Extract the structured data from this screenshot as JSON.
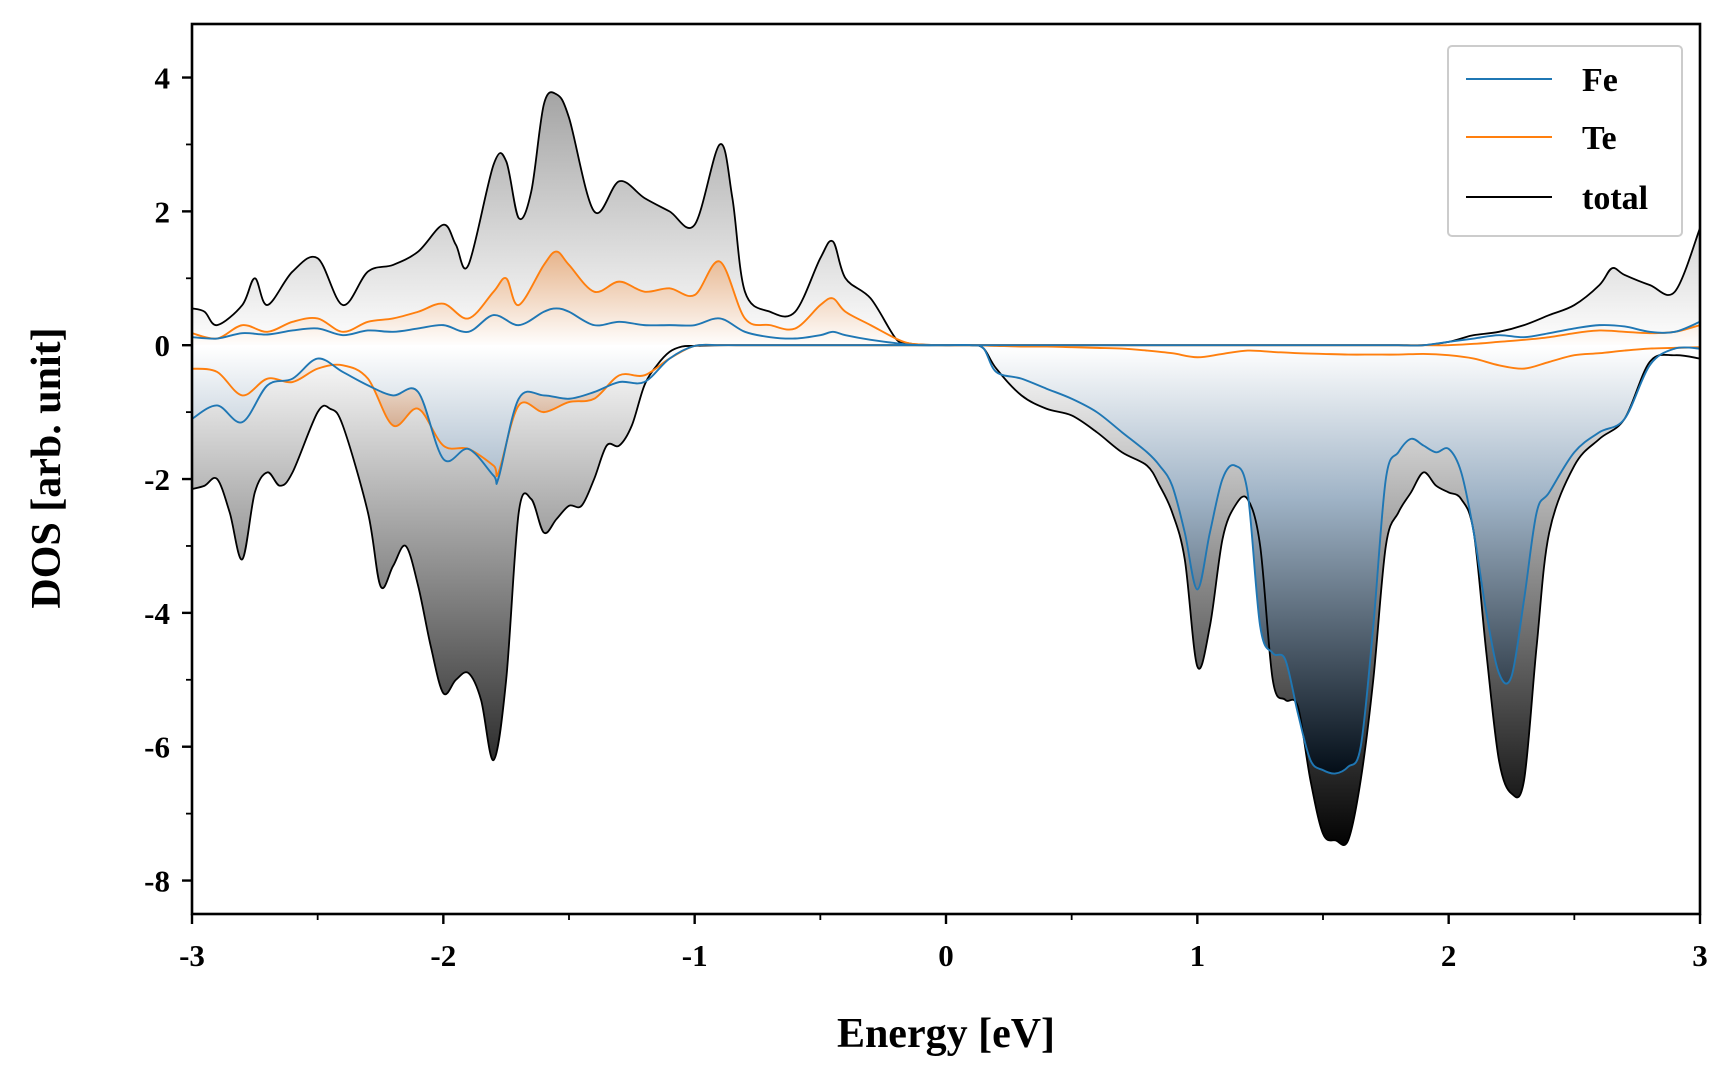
{
  "chart_data": {
    "type": "area",
    "title": "",
    "xlabel": "Energy [eV]",
    "ylabel": "DOS [arb. unit]",
    "xlim": [
      -3,
      3
    ],
    "ylim": [
      -8.5,
      4.8
    ],
    "xticks": [
      -3,
      -2,
      -1,
      0,
      1,
      2,
      3
    ],
    "xtick_labels": [
      "-3",
      "-2",
      "-1",
      "0",
      "1",
      "2",
      "3"
    ],
    "yticks": [
      -8,
      -6,
      -4,
      -2,
      0,
      2,
      4
    ],
    "ytick_labels": [
      "-8",
      "-6",
      "-4",
      "-2",
      "0",
      "2",
      "4"
    ],
    "grid": false,
    "legend_position": "top-right",
    "legend": [
      "Fe",
      "Te",
      "total"
    ],
    "colors": {
      "Fe": "#1f77b4",
      "Te": "#ff7f0e",
      "total": "#000000"
    },
    "series": [
      {
        "name": "Fe",
        "spin": "up",
        "x": [
          -3.0,
          -2.9,
          -2.8,
          -2.7,
          -2.6,
          -2.5,
          -2.4,
          -2.3,
          -2.2,
          -2.1,
          -2.0,
          -1.9,
          -1.8,
          -1.7,
          -1.6,
          -1.55,
          -1.5,
          -1.4,
          -1.3,
          -1.2,
          -1.1,
          -1.0,
          -0.9,
          -0.8,
          -0.7,
          -0.6,
          -0.5,
          -0.45,
          -0.4,
          -0.3,
          -0.2,
          -0.15,
          -0.1,
          0.0,
          0.1,
          0.2,
          0.3,
          0.4,
          0.5,
          0.6,
          0.7,
          0.8,
          0.9,
          1.0,
          1.1,
          1.2,
          1.3,
          1.4,
          1.5,
          1.6,
          1.7,
          1.8,
          1.9,
          2.0,
          2.1,
          2.2,
          2.3,
          2.4,
          2.5,
          2.6,
          2.7,
          2.8,
          2.9,
          3.0
        ],
        "y": [
          0.12,
          0.1,
          0.18,
          0.16,
          0.22,
          0.25,
          0.15,
          0.22,
          0.2,
          0.25,
          0.3,
          0.2,
          0.45,
          0.3,
          0.5,
          0.55,
          0.5,
          0.3,
          0.35,
          0.3,
          0.3,
          0.3,
          0.4,
          0.2,
          0.12,
          0.1,
          0.15,
          0.2,
          0.15,
          0.08,
          0.03,
          0.01,
          0.0,
          0.0,
          0.0,
          0.0,
          0.0,
          0.0,
          0.0,
          0.0,
          0.0,
          0.0,
          0.0,
          0.0,
          0.0,
          0.0,
          0.0,
          0.0,
          0.0,
          0.0,
          0.0,
          0.0,
          0.0,
          0.05,
          0.1,
          0.15,
          0.12,
          0.18,
          0.25,
          0.3,
          0.28,
          0.2,
          0.2,
          0.35
        ]
      },
      {
        "name": "Te",
        "spin": "up",
        "x": [
          -3.0,
          -2.9,
          -2.8,
          -2.7,
          -2.6,
          -2.5,
          -2.4,
          -2.3,
          -2.2,
          -2.1,
          -2.0,
          -1.9,
          -1.8,
          -1.75,
          -1.7,
          -1.6,
          -1.55,
          -1.5,
          -1.4,
          -1.3,
          -1.2,
          -1.1,
          -1.0,
          -0.9,
          -0.8,
          -0.7,
          -0.6,
          -0.5,
          -0.45,
          -0.4,
          -0.3,
          -0.2,
          -0.15,
          -0.1,
          0.0,
          0.1,
          0.2,
          0.3,
          0.4,
          0.5,
          0.6,
          0.7,
          0.8,
          0.9,
          1.0,
          1.1,
          1.2,
          1.3,
          1.4,
          1.5,
          1.6,
          1.7,
          1.8,
          1.9,
          2.0,
          2.1,
          2.2,
          2.3,
          2.4,
          2.5,
          2.6,
          2.7,
          2.8,
          2.9,
          3.0
        ],
        "y": [
          0.18,
          0.1,
          0.3,
          0.2,
          0.35,
          0.4,
          0.2,
          0.35,
          0.4,
          0.5,
          0.62,
          0.4,
          0.8,
          1.0,
          0.6,
          1.2,
          1.4,
          1.2,
          0.8,
          0.95,
          0.8,
          0.85,
          0.75,
          1.25,
          0.4,
          0.3,
          0.25,
          0.6,
          0.7,
          0.5,
          0.3,
          0.1,
          0.03,
          0.01,
          0.0,
          0.0,
          0.0,
          0.0,
          0.0,
          0.0,
          0.0,
          0.0,
          0.0,
          0.0,
          0.0,
          0.0,
          0.0,
          0.0,
          0.0,
          0.0,
          0.0,
          0.0,
          0.0,
          0.0,
          0.0,
          0.02,
          0.05,
          0.08,
          0.12,
          0.18,
          0.22,
          0.2,
          0.18,
          0.2,
          0.3
        ]
      },
      {
        "name": "total",
        "spin": "up",
        "x": [
          -3.0,
          -2.95,
          -2.9,
          -2.8,
          -2.75,
          -2.7,
          -2.6,
          -2.5,
          -2.4,
          -2.3,
          -2.2,
          -2.1,
          -2.0,
          -1.95,
          -1.9,
          -1.8,
          -1.75,
          -1.7,
          -1.65,
          -1.6,
          -1.55,
          -1.5,
          -1.4,
          -1.3,
          -1.2,
          -1.1,
          -1.0,
          -0.9,
          -0.85,
          -0.8,
          -0.7,
          -0.6,
          -0.5,
          -0.45,
          -0.4,
          -0.3,
          -0.2,
          -0.15,
          -0.1,
          0.0,
          0.1,
          0.2,
          0.3,
          0.4,
          0.5,
          0.6,
          0.7,
          0.8,
          0.9,
          1.0,
          1.1,
          1.2,
          1.3,
          1.4,
          1.5,
          1.6,
          1.7,
          1.8,
          1.9,
          2.0,
          2.05,
          2.1,
          2.2,
          2.3,
          2.4,
          2.5,
          2.6,
          2.65,
          2.7,
          2.8,
          2.9,
          3.0
        ],
        "y": [
          0.55,
          0.5,
          0.3,
          0.6,
          1.0,
          0.6,
          1.1,
          1.3,
          0.6,
          1.1,
          1.2,
          1.4,
          1.8,
          1.5,
          1.2,
          2.7,
          2.75,
          1.9,
          2.3,
          3.6,
          3.75,
          3.4,
          2.0,
          2.45,
          2.2,
          2.0,
          1.8,
          3.0,
          2.2,
          0.8,
          0.5,
          0.5,
          1.3,
          1.55,
          1.0,
          0.7,
          0.1,
          0.03,
          0.01,
          0.0,
          0.0,
          0.0,
          0.0,
          0.0,
          0.0,
          0.0,
          0.0,
          0.0,
          0.0,
          0.0,
          0.0,
          0.0,
          0.0,
          0.0,
          0.0,
          0.0,
          0.0,
          0.0,
          0.0,
          0.05,
          0.1,
          0.15,
          0.2,
          0.3,
          0.45,
          0.6,
          0.9,
          1.15,
          1.05,
          0.9,
          0.8,
          1.75
        ]
      },
      {
        "name": "Fe",
        "spin": "down",
        "x": [
          -3.0,
          -2.9,
          -2.8,
          -2.7,
          -2.6,
          -2.5,
          -2.4,
          -2.3,
          -2.2,
          -2.1,
          -2.0,
          -1.9,
          -1.8,
          -1.78,
          -1.7,
          -1.6,
          -1.5,
          -1.4,
          -1.3,
          -1.2,
          -1.1,
          -1.0,
          -0.9,
          -0.8,
          -0.7,
          -0.6,
          -0.5,
          -0.4,
          -0.3,
          -0.2,
          -0.1,
          0.0,
          0.1,
          0.15,
          0.2,
          0.3,
          0.4,
          0.5,
          0.6,
          0.7,
          0.8,
          0.85,
          0.9,
          0.95,
          1.0,
          1.05,
          1.1,
          1.15,
          1.2,
          1.25,
          1.3,
          1.35,
          1.4,
          1.45,
          1.5,
          1.55,
          1.6,
          1.65,
          1.7,
          1.75,
          1.8,
          1.85,
          1.9,
          1.95,
          2.0,
          2.05,
          2.1,
          2.15,
          2.2,
          2.25,
          2.3,
          2.35,
          2.4,
          2.5,
          2.6,
          2.7,
          2.8,
          2.9,
          3.0
        ],
        "y": [
          -1.1,
          -0.9,
          -1.15,
          -0.6,
          -0.5,
          -0.2,
          -0.4,
          -0.6,
          -0.75,
          -0.7,
          -1.7,
          -1.55,
          -1.95,
          -1.98,
          -0.8,
          -0.75,
          -0.8,
          -0.7,
          -0.55,
          -0.55,
          -0.2,
          -0.01,
          0.0,
          0.0,
          0.0,
          0.0,
          0.0,
          0.0,
          0.0,
          0.0,
          0.0,
          0.0,
          0.0,
          -0.05,
          -0.4,
          -0.5,
          -0.65,
          -0.8,
          -1.0,
          -1.3,
          -1.6,
          -1.8,
          -2.1,
          -2.8,
          -3.65,
          -2.8,
          -2.0,
          -1.8,
          -2.2,
          -4.2,
          -4.6,
          -4.7,
          -5.5,
          -6.2,
          -6.35,
          -6.4,
          -6.3,
          -6.0,
          -4.2,
          -2.0,
          -1.6,
          -1.4,
          -1.5,
          -1.6,
          -1.55,
          -1.9,
          -2.8,
          -4.0,
          -4.9,
          -4.95,
          -3.8,
          -2.5,
          -2.2,
          -1.6,
          -1.3,
          -1.1,
          -0.3,
          -0.05,
          -0.05
        ]
      },
      {
        "name": "Te",
        "spin": "down",
        "x": [
          -3.0,
          -2.9,
          -2.8,
          -2.7,
          -2.6,
          -2.5,
          -2.4,
          -2.3,
          -2.2,
          -2.1,
          -2.0,
          -1.9,
          -1.8,
          -1.78,
          -1.7,
          -1.6,
          -1.5,
          -1.4,
          -1.3,
          -1.2,
          -1.1,
          -1.0,
          -0.9,
          -0.8,
          -0.7,
          -0.6,
          -0.5,
          -0.4,
          -0.3,
          -0.2,
          -0.1,
          0.0,
          0.1,
          0.2,
          0.3,
          0.4,
          0.5,
          0.6,
          0.7,
          0.8,
          0.9,
          1.0,
          1.1,
          1.2,
          1.3,
          1.4,
          1.5,
          1.6,
          1.7,
          1.8,
          1.9,
          2.0,
          2.1,
          2.2,
          2.3,
          2.4,
          2.5,
          2.6,
          2.7,
          2.8,
          2.9,
          3.0
        ],
        "y": [
          -0.35,
          -0.4,
          -0.75,
          -0.5,
          -0.55,
          -0.35,
          -0.3,
          -0.5,
          -1.2,
          -0.95,
          -1.5,
          -1.55,
          -1.8,
          -1.9,
          -0.9,
          -1.0,
          -0.85,
          -0.8,
          -0.45,
          -0.45,
          -0.2,
          -0.01,
          0.0,
          0.0,
          0.0,
          0.0,
          0.0,
          0.0,
          0.0,
          0.0,
          0.0,
          0.0,
          0.0,
          -0.01,
          -0.02,
          -0.02,
          -0.03,
          -0.04,
          -0.05,
          -0.08,
          -0.12,
          -0.18,
          -0.13,
          -0.08,
          -0.1,
          -0.12,
          -0.13,
          -0.14,
          -0.14,
          -0.14,
          -0.13,
          -0.15,
          -0.2,
          -0.3,
          -0.35,
          -0.25,
          -0.15,
          -0.12,
          -0.08,
          -0.05,
          -0.04,
          -0.03
        ]
      },
      {
        "name": "total",
        "spin": "down",
        "x": [
          -3.0,
          -2.95,
          -2.9,
          -2.85,
          -2.8,
          -2.75,
          -2.7,
          -2.65,
          -2.6,
          -2.5,
          -2.45,
          -2.4,
          -2.3,
          -2.25,
          -2.2,
          -2.15,
          -2.1,
          -2.05,
          -2.0,
          -1.95,
          -1.9,
          -1.85,
          -1.8,
          -1.75,
          -1.7,
          -1.65,
          -1.6,
          -1.55,
          -1.5,
          -1.45,
          -1.4,
          -1.35,
          -1.3,
          -1.25,
          -1.2,
          -1.15,
          -1.1,
          -1.05,
          -1.0,
          -0.9,
          -0.8,
          -0.7,
          -0.6,
          -0.5,
          -0.4,
          -0.3,
          -0.2,
          -0.1,
          0.0,
          0.1,
          0.15,
          0.2,
          0.3,
          0.4,
          0.5,
          0.6,
          0.7,
          0.8,
          0.85,
          0.9,
          0.95,
          1.0,
          1.05,
          1.1,
          1.15,
          1.2,
          1.25,
          1.3,
          1.35,
          1.4,
          1.45,
          1.5,
          1.55,
          1.6,
          1.65,
          1.7,
          1.75,
          1.8,
          1.85,
          1.9,
          1.95,
          2.0,
          2.05,
          2.1,
          2.15,
          2.2,
          2.25,
          2.3,
          2.35,
          2.4,
          2.5,
          2.6,
          2.7,
          2.8,
          2.9,
          3.0
        ],
        "y": [
          -2.15,
          -2.1,
          -2.0,
          -2.5,
          -3.2,
          -2.2,
          -1.9,
          -2.1,
          -1.9,
          -1.0,
          -0.95,
          -1.2,
          -2.5,
          -3.6,
          -3.3,
          -3.0,
          -3.6,
          -4.5,
          -5.2,
          -5.0,
          -4.9,
          -5.3,
          -6.2,
          -5.0,
          -2.5,
          -2.3,
          -2.8,
          -2.6,
          -2.4,
          -2.4,
          -2.0,
          -1.5,
          -1.5,
          -1.2,
          -0.6,
          -0.3,
          -0.1,
          -0.02,
          -0.01,
          0.0,
          0.0,
          0.0,
          0.0,
          0.0,
          0.0,
          0.0,
          0.0,
          0.0,
          0.0,
          0.0,
          -0.05,
          -0.35,
          -0.75,
          -0.95,
          -1.05,
          -1.3,
          -1.6,
          -1.8,
          -2.1,
          -2.5,
          -3.2,
          -4.8,
          -4.2,
          -2.9,
          -2.4,
          -2.3,
          -3.0,
          -5.0,
          -5.3,
          -5.4,
          -6.5,
          -7.3,
          -7.4,
          -7.4,
          -6.5,
          -5.0,
          -3.0,
          -2.5,
          -2.2,
          -1.9,
          -2.1,
          -2.2,
          -2.3,
          -2.8,
          -4.6,
          -6.2,
          -6.7,
          -6.5,
          -4.5,
          -2.8,
          -1.8,
          -1.4,
          -1.1,
          -0.25,
          -0.15,
          -0.2
        ]
      }
    ]
  }
}
